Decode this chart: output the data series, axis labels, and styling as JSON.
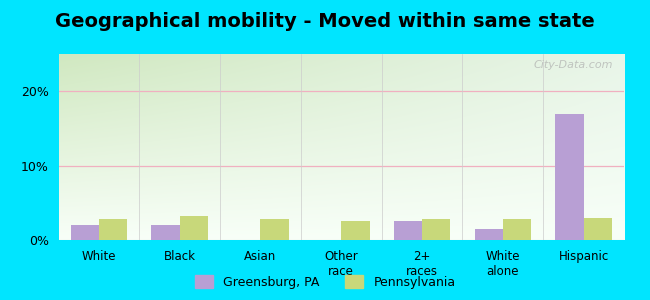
{
  "title": "Geographical mobility - Moved within same state",
  "categories": [
    "White",
    "Black",
    "Asian",
    "Other\nrace",
    "2+\nraces",
    "White\nalone",
    "Hispanic"
  ],
  "greensburg_values": [
    2.0,
    2.0,
    0.0,
    0.0,
    2.5,
    1.5,
    17.0
  ],
  "pennsylvania_values": [
    2.8,
    3.2,
    2.8,
    2.5,
    2.8,
    2.8,
    3.0
  ],
  "greensburg_color": "#b89fd4",
  "pennsylvania_color": "#c8d87a",
  "bar_width": 0.35,
  "ylim": [
    0,
    25
  ],
  "yticks": [
    0,
    10,
    20
  ],
  "ytick_labels": [
    "0%",
    "10%",
    "20%"
  ],
  "grid_color_10": "#f0b0c0",
  "grid_color_20": "#f0b0c0",
  "bg_top_left": "#d0e8c0",
  "bg_top_right": "#e8f0e8",
  "bg_bottom": "#f8fff8",
  "outer_background": "#00e5ff",
  "title_fontsize": 14,
  "legend_label_1": "Greensburg, PA",
  "legend_label_2": "Pennsylvania",
  "watermark": "City-Data.com"
}
